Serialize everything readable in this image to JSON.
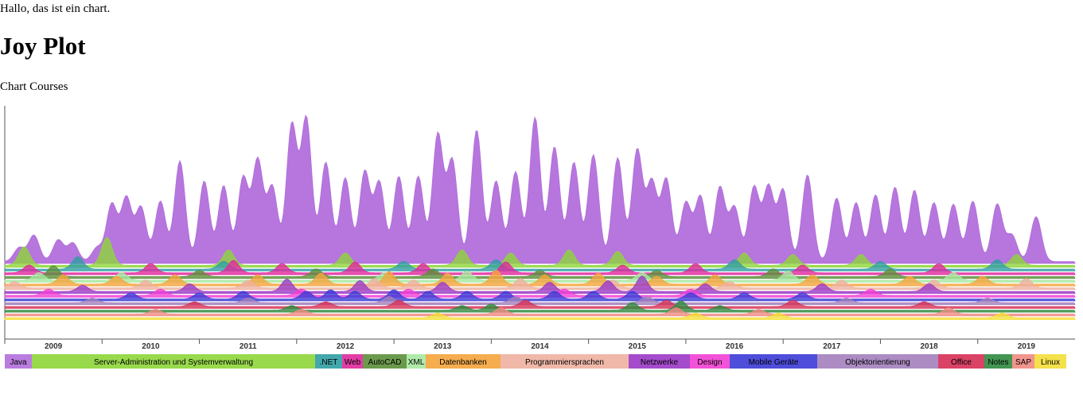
{
  "page": {
    "intro": "Hallo, das ist ein chart.",
    "title": "Joy Plot",
    "subtitle": "Chart Courses"
  },
  "chart_data": {
    "type": "area",
    "subtype": "ridgeline",
    "title": "Joy Plot",
    "subtitle": "Chart Courses",
    "x_axis": {
      "type": "time",
      "range": [
        "2009-01",
        "2019-12"
      ],
      "tick_labels": [
        "2009",
        "2010",
        "2011",
        "2012",
        "2013",
        "2014",
        "2015",
        "2016",
        "2017",
        "2018",
        "2019"
      ]
    },
    "legend_position": "bottom",
    "grid": false,
    "series": [
      {
        "name": "Java",
        "color": "#b26fdb",
        "peaks": [
          [
            2009.15,
            0.09
          ],
          [
            2009.3,
            0.17
          ],
          [
            2009.55,
            0.14
          ],
          [
            2009.7,
            0.12
          ],
          [
            2009.95,
            0.09
          ],
          [
            2010.1,
            0.37
          ],
          [
            2010.25,
            0.41
          ],
          [
            2010.4,
            0.35
          ],
          [
            2010.6,
            0.39
          ],
          [
            2010.8,
            0.65
          ],
          [
            2011.05,
            0.52
          ],
          [
            2011.25,
            0.49
          ],
          [
            2011.45,
            0.54
          ],
          [
            2011.6,
            0.65
          ],
          [
            2011.75,
            0.48
          ],
          [
            2011.95,
            0.88
          ],
          [
            2012.1,
            0.92
          ],
          [
            2012.3,
            0.64
          ],
          [
            2012.5,
            0.54
          ],
          [
            2012.7,
            0.58
          ],
          [
            2012.85,
            0.51
          ],
          [
            2013.05,
            0.55
          ],
          [
            2013.25,
            0.55
          ],
          [
            2013.45,
            0.82
          ],
          [
            2013.6,
            0.65
          ],
          [
            2013.85,
            0.85
          ],
          [
            2014.05,
            0.52
          ],
          [
            2014.25,
            0.58
          ],
          [
            2014.45,
            0.93
          ],
          [
            2014.65,
            0.74
          ],
          [
            2014.85,
            0.64
          ],
          [
            2015.05,
            0.69
          ],
          [
            2015.3,
            0.67
          ],
          [
            2015.5,
            0.72
          ],
          [
            2015.65,
            0.51
          ],
          [
            2015.8,
            0.53
          ],
          [
            2016.0,
            0.38
          ],
          [
            2016.15,
            0.42
          ],
          [
            2016.35,
            0.48
          ],
          [
            2016.5,
            0.35
          ],
          [
            2016.7,
            0.48
          ],
          [
            2016.85,
            0.48
          ],
          [
            2017.0,
            0.46
          ],
          [
            2017.25,
            0.56
          ],
          [
            2017.55,
            0.41
          ],
          [
            2017.75,
            0.38
          ],
          [
            2017.95,
            0.43
          ],
          [
            2018.15,
            0.48
          ],
          [
            2018.35,
            0.46
          ],
          [
            2018.55,
            0.38
          ],
          [
            2018.75,
            0.37
          ],
          [
            2018.95,
            0.39
          ],
          [
            2019.2,
            0.37
          ],
          [
            2019.35,
            0.17
          ],
          [
            2019.6,
            0.29
          ]
        ]
      },
      {
        "name": "Server-Administration und Systemverwaltung",
        "color": "#8ed63a",
        "peaks": [
          [
            2009.2,
            0.12
          ],
          [
            2010.05,
            0.18
          ],
          [
            2011.3,
            0.1
          ],
          [
            2012.5,
            0.08
          ],
          [
            2013.7,
            0.1
          ],
          [
            2014.2,
            0.08
          ],
          [
            2014.8,
            0.1
          ],
          [
            2015.3,
            0.09
          ],
          [
            2016.6,
            0.08
          ],
          [
            2017.1,
            0.07
          ],
          [
            2017.8,
            0.07
          ],
          [
            2019.4,
            0.07
          ]
        ]
      },
      {
        "name": ".NET",
        "color": "#2f9ea3",
        "peaks": [
          [
            2009.75,
            0.08
          ],
          [
            2011.25,
            0.05
          ],
          [
            2013.1,
            0.05
          ],
          [
            2014.05,
            0.06
          ],
          [
            2016.5,
            0.06
          ],
          [
            2018.0,
            0.05
          ],
          [
            2019.2,
            0.06
          ]
        ]
      },
      {
        "name": "Web",
        "color": "#e0289c",
        "peaks": [
          [
            2009.25,
            0.05
          ],
          [
            2010.5,
            0.06
          ],
          [
            2011.35,
            0.08
          ],
          [
            2011.85,
            0.06
          ],
          [
            2012.6,
            0.07
          ],
          [
            2013.3,
            0.06
          ],
          [
            2014.15,
            0.07
          ],
          [
            2015.35,
            0.05
          ],
          [
            2016.1,
            0.06
          ],
          [
            2017.2,
            0.05
          ],
          [
            2018.6,
            0.06
          ]
        ]
      },
      {
        "name": "AutoCAD",
        "color": "#5b8f3a",
        "peaks": [
          [
            2009.5,
            0.07
          ],
          [
            2011.0,
            0.04
          ],
          [
            2012.2,
            0.05
          ],
          [
            2013.4,
            0.05
          ],
          [
            2014.5,
            0.04
          ],
          [
            2015.7,
            0.04
          ],
          [
            2016.9,
            0.05
          ],
          [
            2018.1,
            0.05
          ]
        ]
      },
      {
        "name": "XML",
        "color": "#a6e8a0",
        "peaks": [
          [
            2009.35,
            0.05
          ],
          [
            2010.2,
            0.05
          ],
          [
            2012.9,
            0.05
          ],
          [
            2013.75,
            0.06
          ],
          [
            2015.55,
            0.05
          ],
          [
            2017.05,
            0.06
          ],
          [
            2018.75,
            0.05
          ]
        ]
      },
      {
        "name": "Datenbanken",
        "color": "#f5a43c",
        "peaks": [
          [
            2009.6,
            0.06
          ],
          [
            2010.15,
            0.05
          ],
          [
            2010.75,
            0.06
          ],
          [
            2011.6,
            0.06
          ],
          [
            2012.25,
            0.07
          ],
          [
            2012.95,
            0.08
          ],
          [
            2013.55,
            0.07
          ],
          [
            2014.05,
            0.09
          ],
          [
            2014.55,
            0.06
          ],
          [
            2015.1,
            0.07
          ],
          [
            2015.7,
            0.05
          ],
          [
            2016.3,
            0.06
          ],
          [
            2017.3,
            0.06
          ],
          [
            2018.3,
            0.05
          ],
          [
            2019.05,
            0.05
          ]
        ]
      },
      {
        "name": "Programmiersprachen",
        "color": "#eeb0a0",
        "peaks": [
          [
            2009.1,
            0.04
          ],
          [
            2010.45,
            0.05
          ],
          [
            2011.5,
            0.05
          ],
          [
            2012.8,
            0.06
          ],
          [
            2013.2,
            0.05
          ],
          [
            2014.3,
            0.06
          ],
          [
            2015.25,
            0.05
          ],
          [
            2016.45,
            0.04
          ],
          [
            2017.6,
            0.05
          ],
          [
            2018.55,
            0.05
          ],
          [
            2019.5,
            0.06
          ]
        ]
      },
      {
        "name": "Netzwerke",
        "color": "#9b39c6",
        "peaks": [
          [
            2009.8,
            0.04
          ],
          [
            2010.9,
            0.05
          ],
          [
            2011.9,
            0.08
          ],
          [
            2012.65,
            0.07
          ],
          [
            2013.5,
            0.06
          ],
          [
            2014.6,
            0.06
          ],
          [
            2015.2,
            0.07
          ],
          [
            2015.55,
            0.1
          ],
          [
            2016.2,
            0.05
          ],
          [
            2017.4,
            0.05
          ],
          [
            2018.5,
            0.05
          ]
        ]
      },
      {
        "name": "Design",
        "color": "#f23fd4",
        "peaks": [
          [
            2009.45,
            0.04
          ],
          [
            2010.6,
            0.04
          ],
          [
            2012.05,
            0.04
          ],
          [
            2013.15,
            0.04
          ],
          [
            2014.75,
            0.04
          ],
          [
            2016.05,
            0.04
          ],
          [
            2017.9,
            0.04
          ]
        ]
      },
      {
        "name": "Mobile Geräte",
        "color": "#3b3bd6",
        "peaks": [
          [
            2010.3,
            0.04
          ],
          [
            2011.0,
            0.04
          ],
          [
            2011.45,
            0.05
          ],
          [
            2012.1,
            0.05
          ],
          [
            2012.35,
            0.06
          ],
          [
            2012.6,
            0.05
          ],
          [
            2013.0,
            0.06
          ],
          [
            2013.35,
            0.05
          ],
          [
            2013.75,
            0.05
          ],
          [
            2014.15,
            0.05
          ],
          [
            2014.65,
            0.05
          ],
          [
            2015.05,
            0.05
          ],
          [
            2015.45,
            0.05
          ],
          [
            2016.05,
            0.04
          ],
          [
            2016.6,
            0.04
          ],
          [
            2017.2,
            0.04
          ]
        ]
      },
      {
        "name": "Objektorientierung",
        "color": "#a37fbd",
        "peaks": [
          [
            2009.9,
            0.03
          ],
          [
            2011.5,
            0.03
          ],
          [
            2012.95,
            0.04
          ],
          [
            2014.25,
            0.04
          ],
          [
            2015.6,
            0.04
          ],
          [
            2017.65,
            0.03
          ],
          [
            2019.1,
            0.03
          ]
        ]
      },
      {
        "name": "Office",
        "color": "#d62f55",
        "peaks": [
          [
            2010.95,
            0.03
          ],
          [
            2012.3,
            0.03
          ],
          [
            2013.05,
            0.04
          ],
          [
            2014.35,
            0.04
          ],
          [
            2015.8,
            0.04
          ],
          [
            2017.1,
            0.04
          ],
          [
            2018.45,
            0.03
          ]
        ]
      },
      {
        "name": "Notes",
        "color": "#2f8a3f",
        "peaks": [
          [
            2011.95,
            0.03
          ],
          [
            2013.7,
            0.03
          ],
          [
            2014.0,
            0.04
          ],
          [
            2015.45,
            0.05
          ],
          [
            2015.95,
            0.06
          ],
          [
            2016.35,
            0.03
          ]
        ]
      },
      {
        "name": "SAP",
        "color": "#f08a82",
        "peaks": [
          [
            2010.55,
            0.03
          ],
          [
            2012.05,
            0.03
          ],
          [
            2014.1,
            0.04
          ],
          [
            2015.9,
            0.04
          ],
          [
            2016.75,
            0.03
          ],
          [
            2018.7,
            0.04
          ]
        ]
      },
      {
        "name": "Linux",
        "color": "#f4de38",
        "peaks": [
          [
            2013.45,
            0.03
          ],
          [
            2016.1,
            0.03
          ],
          [
            2016.95,
            0.03
          ],
          [
            2019.25,
            0.03
          ]
        ]
      }
    ]
  }
}
